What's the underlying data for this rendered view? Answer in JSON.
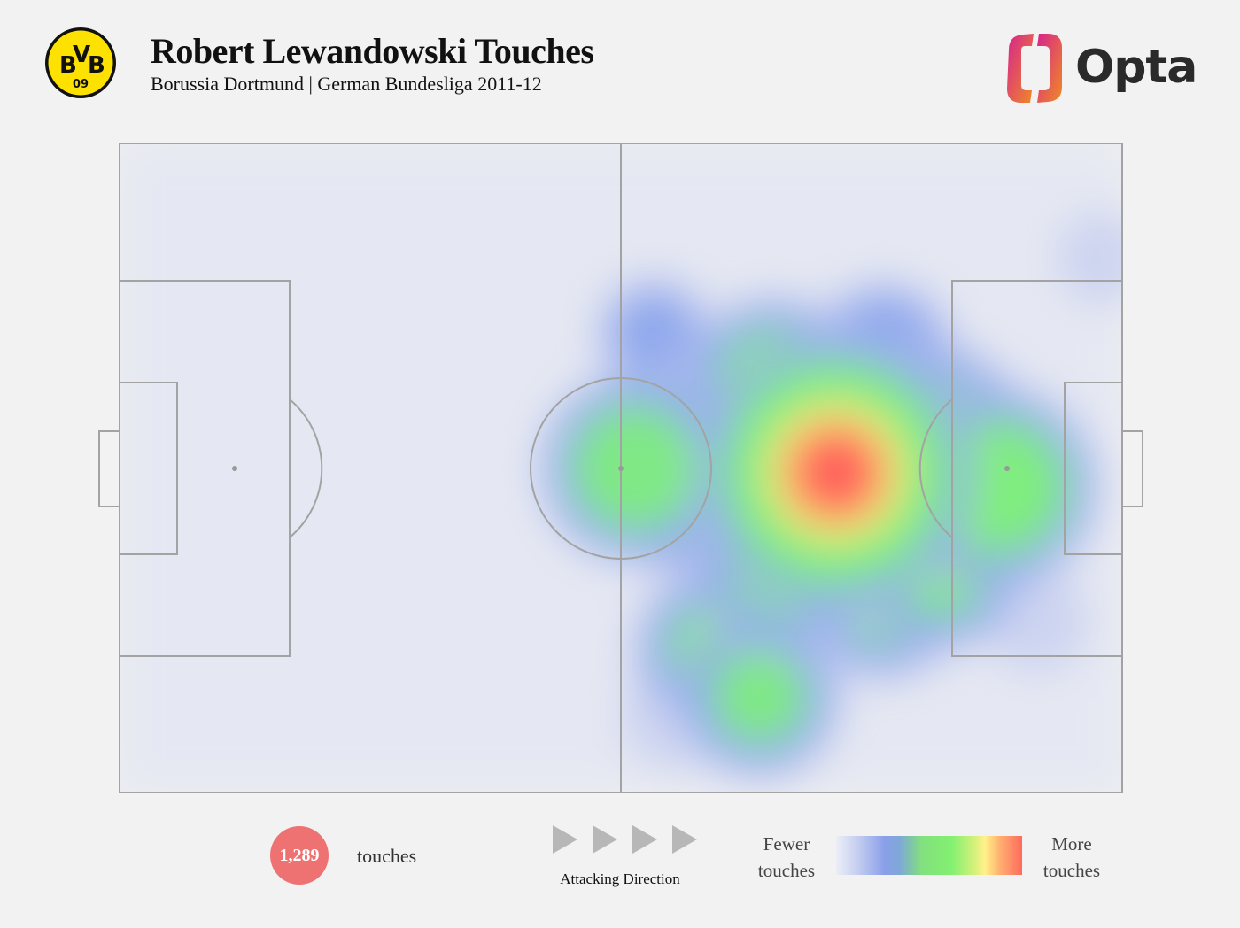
{
  "header": {
    "title": "Robert Lewandowski Touches",
    "subtitle": "Borussia Dortmund | German Bundesliga 2011-12",
    "crest_text": "BVB",
    "crest_number": "09",
    "crest_color": "#fde100",
    "brand_name": "Opta",
    "brand_colors": [
      "#d6248e",
      "#f08a24"
    ]
  },
  "chart_data": {
    "type": "heatmap",
    "pitch_length": 105,
    "pitch_width": 68,
    "attacking_direction": "left-to-right",
    "hotspots": [
      {
        "x": 75.0,
        "y": 34.5,
        "intensity": 1.0
      },
      {
        "x": 70.0,
        "y": 43.0,
        "intensity": 0.5
      },
      {
        "x": 68.5,
        "y": 25.5,
        "intensity": 0.45
      },
      {
        "x": 62.0,
        "y": 53.0,
        "intensity": 0.35
      },
      {
        "x": 67.0,
        "y": 58.0,
        "intensity": 0.38
      },
      {
        "x": 60.0,
        "y": 37.0,
        "intensity": 0.38
      },
      {
        "x": 54.0,
        "y": 34.0,
        "intensity": 0.5
      },
      {
        "x": 62.0,
        "y": 30.0,
        "intensity": 0.32
      },
      {
        "x": 66.0,
        "y": 38.0,
        "intensity": 0.3
      },
      {
        "x": 92.0,
        "y": 36.0,
        "intensity": 0.55
      },
      {
        "x": 86.0,
        "y": 30.0,
        "intensity": 0.4
      },
      {
        "x": 86.0,
        "y": 44.0,
        "intensity": 0.42
      },
      {
        "x": 80.0,
        "y": 48.0,
        "intensity": 0.35
      },
      {
        "x": 80.0,
        "y": 22.0,
        "intensity": 0.3
      },
      {
        "x": 56.0,
        "y": 20.0,
        "intensity": 0.2
      },
      {
        "x": 58.0,
        "y": 60.0,
        "intensity": 0.14
      },
      {
        "x": 96.0,
        "y": 50.0,
        "intensity": 0.14
      },
      {
        "x": 103.0,
        "y": 12.0,
        "intensity": 0.11
      },
      {
        "x": 44.0,
        "y": 62.0,
        "intensity": 0.07
      },
      {
        "x": 40.0,
        "y": 40.0,
        "intensity": 0.08
      },
      {
        "x": 12.0,
        "y": 34.0,
        "intensity": 0.05
      },
      {
        "x": 8.0,
        "y": 60.0,
        "intensity": 0.04
      },
      {
        "x": 30.0,
        "y": 10.0,
        "intensity": 0.04
      }
    ]
  },
  "touches": {
    "count": "1,289",
    "label": "touches"
  },
  "direction": {
    "label": "Attacking Direction",
    "arrow_count": 4
  },
  "legend": {
    "fewer_line1": "Fewer",
    "fewer_line2": "touches",
    "more_line1": "More",
    "more_line2": "touches"
  }
}
